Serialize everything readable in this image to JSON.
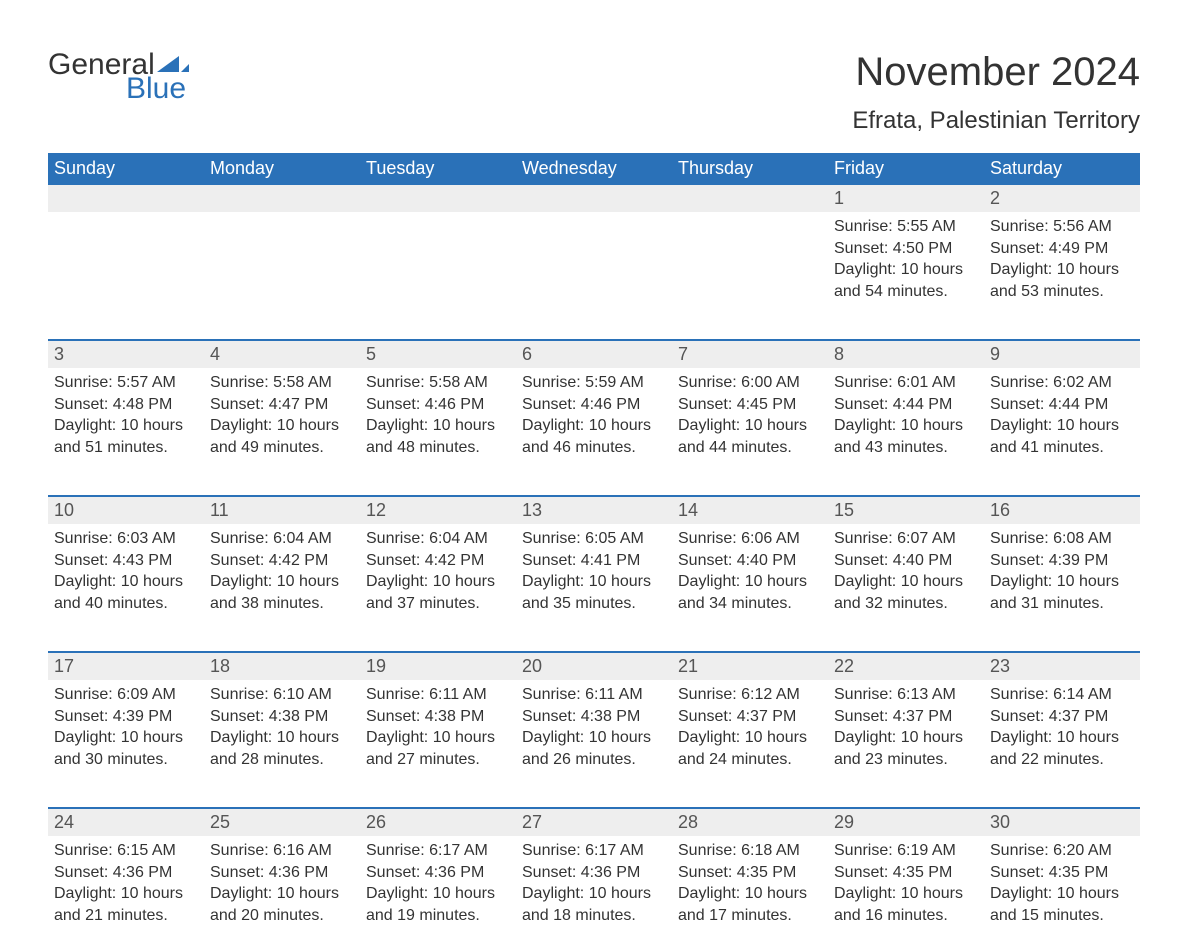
{
  "logo": {
    "text1": "General",
    "text2": "Blue",
    "accent_color": "#2a71b8"
  },
  "title": "November 2024",
  "subtitle": "Efrata, Palestinian Territory",
  "colors": {
    "header_bg": "#2a71b8",
    "header_text": "#ffffff",
    "daynum_bg": "#eeeeee",
    "border": "#2a71b8",
    "body_text": "#333333",
    "page_bg": "#ffffff"
  },
  "fonts": {
    "title_size_pt": 30,
    "subtitle_size_pt": 18,
    "header_size_pt": 14,
    "cell_size_pt": 12
  },
  "day_names": [
    "Sunday",
    "Monday",
    "Tuesday",
    "Wednesday",
    "Thursday",
    "Friday",
    "Saturday"
  ],
  "weeks": [
    [
      {
        "day": "",
        "sunrise": "",
        "sunset": "",
        "daylight": ""
      },
      {
        "day": "",
        "sunrise": "",
        "sunset": "",
        "daylight": ""
      },
      {
        "day": "",
        "sunrise": "",
        "sunset": "",
        "daylight": ""
      },
      {
        "day": "",
        "sunrise": "",
        "sunset": "",
        "daylight": ""
      },
      {
        "day": "",
        "sunrise": "",
        "sunset": "",
        "daylight": ""
      },
      {
        "day": "1",
        "sunrise": "Sunrise: 5:55 AM",
        "sunset": "Sunset: 4:50 PM",
        "daylight": "Daylight: 10 hours and 54 minutes."
      },
      {
        "day": "2",
        "sunrise": "Sunrise: 5:56 AM",
        "sunset": "Sunset: 4:49 PM",
        "daylight": "Daylight: 10 hours and 53 minutes."
      }
    ],
    [
      {
        "day": "3",
        "sunrise": "Sunrise: 5:57 AM",
        "sunset": "Sunset: 4:48 PM",
        "daylight": "Daylight: 10 hours and 51 minutes."
      },
      {
        "day": "4",
        "sunrise": "Sunrise: 5:58 AM",
        "sunset": "Sunset: 4:47 PM",
        "daylight": "Daylight: 10 hours and 49 minutes."
      },
      {
        "day": "5",
        "sunrise": "Sunrise: 5:58 AM",
        "sunset": "Sunset: 4:46 PM",
        "daylight": "Daylight: 10 hours and 48 minutes."
      },
      {
        "day": "6",
        "sunrise": "Sunrise: 5:59 AM",
        "sunset": "Sunset: 4:46 PM",
        "daylight": "Daylight: 10 hours and 46 minutes."
      },
      {
        "day": "7",
        "sunrise": "Sunrise: 6:00 AM",
        "sunset": "Sunset: 4:45 PM",
        "daylight": "Daylight: 10 hours and 44 minutes."
      },
      {
        "day": "8",
        "sunrise": "Sunrise: 6:01 AM",
        "sunset": "Sunset: 4:44 PM",
        "daylight": "Daylight: 10 hours and 43 minutes."
      },
      {
        "day": "9",
        "sunrise": "Sunrise: 6:02 AM",
        "sunset": "Sunset: 4:44 PM",
        "daylight": "Daylight: 10 hours and 41 minutes."
      }
    ],
    [
      {
        "day": "10",
        "sunrise": "Sunrise: 6:03 AM",
        "sunset": "Sunset: 4:43 PM",
        "daylight": "Daylight: 10 hours and 40 minutes."
      },
      {
        "day": "11",
        "sunrise": "Sunrise: 6:04 AM",
        "sunset": "Sunset: 4:42 PM",
        "daylight": "Daylight: 10 hours and 38 minutes."
      },
      {
        "day": "12",
        "sunrise": "Sunrise: 6:04 AM",
        "sunset": "Sunset: 4:42 PM",
        "daylight": "Daylight: 10 hours and 37 minutes."
      },
      {
        "day": "13",
        "sunrise": "Sunrise: 6:05 AM",
        "sunset": "Sunset: 4:41 PM",
        "daylight": "Daylight: 10 hours and 35 minutes."
      },
      {
        "day": "14",
        "sunrise": "Sunrise: 6:06 AM",
        "sunset": "Sunset: 4:40 PM",
        "daylight": "Daylight: 10 hours and 34 minutes."
      },
      {
        "day": "15",
        "sunrise": "Sunrise: 6:07 AM",
        "sunset": "Sunset: 4:40 PM",
        "daylight": "Daylight: 10 hours and 32 minutes."
      },
      {
        "day": "16",
        "sunrise": "Sunrise: 6:08 AM",
        "sunset": "Sunset: 4:39 PM",
        "daylight": "Daylight: 10 hours and 31 minutes."
      }
    ],
    [
      {
        "day": "17",
        "sunrise": "Sunrise: 6:09 AM",
        "sunset": "Sunset: 4:39 PM",
        "daylight": "Daylight: 10 hours and 30 minutes."
      },
      {
        "day": "18",
        "sunrise": "Sunrise: 6:10 AM",
        "sunset": "Sunset: 4:38 PM",
        "daylight": "Daylight: 10 hours and 28 minutes."
      },
      {
        "day": "19",
        "sunrise": "Sunrise: 6:11 AM",
        "sunset": "Sunset: 4:38 PM",
        "daylight": "Daylight: 10 hours and 27 minutes."
      },
      {
        "day": "20",
        "sunrise": "Sunrise: 6:11 AM",
        "sunset": "Sunset: 4:38 PM",
        "daylight": "Daylight: 10 hours and 26 minutes."
      },
      {
        "day": "21",
        "sunrise": "Sunrise: 6:12 AM",
        "sunset": "Sunset: 4:37 PM",
        "daylight": "Daylight: 10 hours and 24 minutes."
      },
      {
        "day": "22",
        "sunrise": "Sunrise: 6:13 AM",
        "sunset": "Sunset: 4:37 PM",
        "daylight": "Daylight: 10 hours and 23 minutes."
      },
      {
        "day": "23",
        "sunrise": "Sunrise: 6:14 AM",
        "sunset": "Sunset: 4:37 PM",
        "daylight": "Daylight: 10 hours and 22 minutes."
      }
    ],
    [
      {
        "day": "24",
        "sunrise": "Sunrise: 6:15 AM",
        "sunset": "Sunset: 4:36 PM",
        "daylight": "Daylight: 10 hours and 21 minutes."
      },
      {
        "day": "25",
        "sunrise": "Sunrise: 6:16 AM",
        "sunset": "Sunset: 4:36 PM",
        "daylight": "Daylight: 10 hours and 20 minutes."
      },
      {
        "day": "26",
        "sunrise": "Sunrise: 6:17 AM",
        "sunset": "Sunset: 4:36 PM",
        "daylight": "Daylight: 10 hours and 19 minutes."
      },
      {
        "day": "27",
        "sunrise": "Sunrise: 6:17 AM",
        "sunset": "Sunset: 4:36 PM",
        "daylight": "Daylight: 10 hours and 18 minutes."
      },
      {
        "day": "28",
        "sunrise": "Sunrise: 6:18 AM",
        "sunset": "Sunset: 4:35 PM",
        "daylight": "Daylight: 10 hours and 17 minutes."
      },
      {
        "day": "29",
        "sunrise": "Sunrise: 6:19 AM",
        "sunset": "Sunset: 4:35 PM",
        "daylight": "Daylight: 10 hours and 16 minutes."
      },
      {
        "day": "30",
        "sunrise": "Sunrise: 6:20 AM",
        "sunset": "Sunset: 4:35 PM",
        "daylight": "Daylight: 10 hours and 15 minutes."
      }
    ]
  ]
}
